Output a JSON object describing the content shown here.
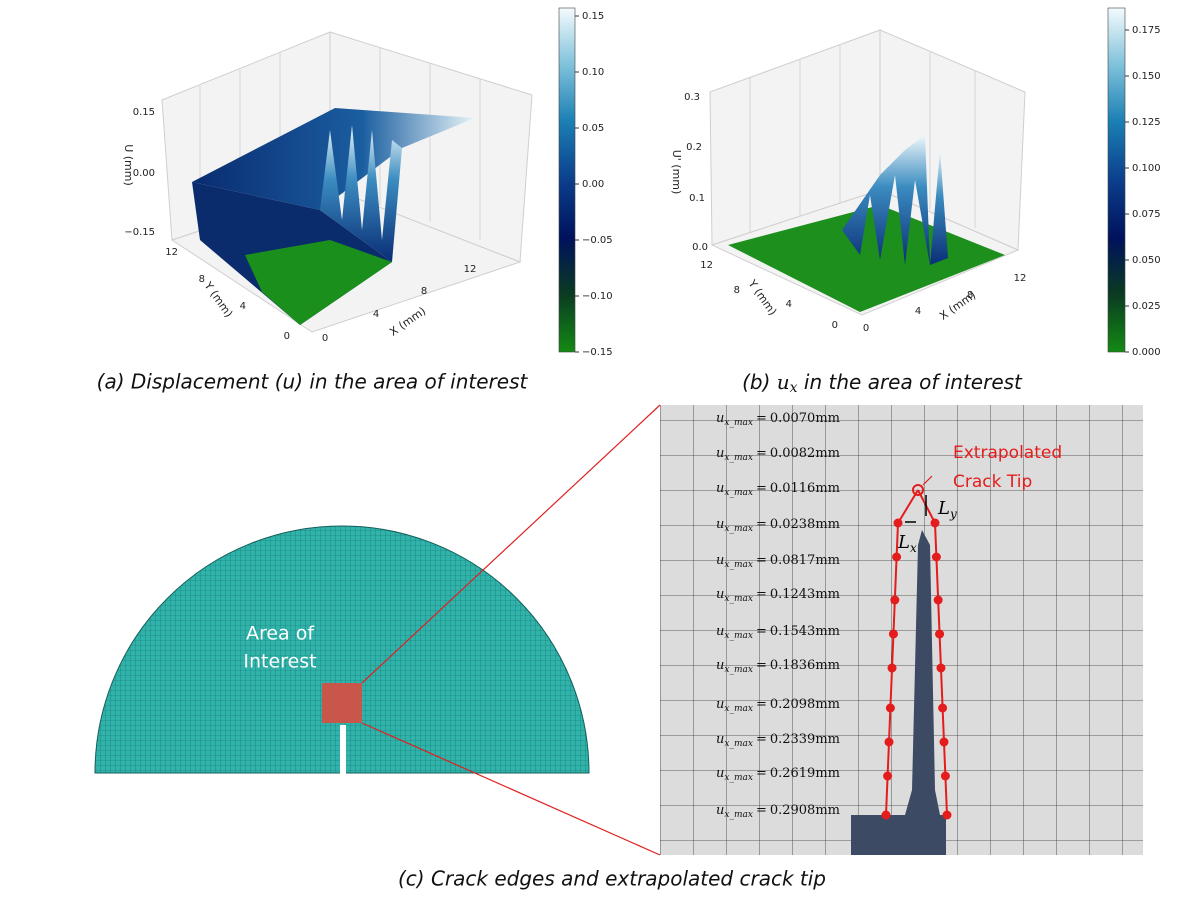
{
  "panel_a": {
    "caption": "(a) Displacement (u) in the area of interest",
    "z_label": "U (mm)",
    "x_label": "X (mm)",
    "y_label": "Y (mm)",
    "z_ticks": [
      "0.15",
      "0.00",
      "−0.15"
    ],
    "x_ticks": [
      "0",
      "4",
      "8",
      "12"
    ],
    "y_ticks": [
      "0",
      "4",
      "8",
      "12"
    ],
    "colorbar_ticks": [
      "0.15",
      "0.10",
      "0.05",
      "0.00",
      "−0.05",
      "−0.10",
      "−0.15"
    ]
  },
  "panel_b": {
    "caption_prefix": "(b)",
    "caption_symbol": "u",
    "caption_sub": "x",
    "caption_suffix": "in the area of interest",
    "z_label": "U' (mm)",
    "x_label": "X (mm)",
    "y_label": "Y (mm)",
    "z_ticks": [
      "0.3",
      "0.2",
      "0.1",
      "0.0"
    ],
    "x_ticks": [
      "0",
      "4",
      "8",
      "12"
    ],
    "y_ticks": [
      "0",
      "4",
      "8",
      "12"
    ],
    "colorbar_ticks": [
      "0.175",
      "0.150",
      "0.125",
      "0.100",
      "0.075",
      "0.050",
      "0.025",
      "0.000"
    ]
  },
  "panel_c": {
    "caption": "(c) Crack edges and extrapolated crack tip",
    "region_label": [
      "Area of",
      "Interest"
    ],
    "tip_label": [
      "Extrapolated",
      "Crack Tip"
    ],
    "lx_symbol": "L",
    "lx_sub": "x",
    "ly_symbol": "L",
    "ly_sub": "y",
    "measure_symbol": "u",
    "measure_sub": "x_max",
    "equals": "=",
    "measurements": [
      "0.0070mm",
      "0.0082mm",
      "0.0116mm",
      "0.0238mm",
      "0.0817mm",
      "0.1243mm",
      "0.1543mm",
      "0.1836mm",
      "0.2098mm",
      "0.2339mm",
      "0.2619mm",
      "0.2908mm"
    ]
  }
}
